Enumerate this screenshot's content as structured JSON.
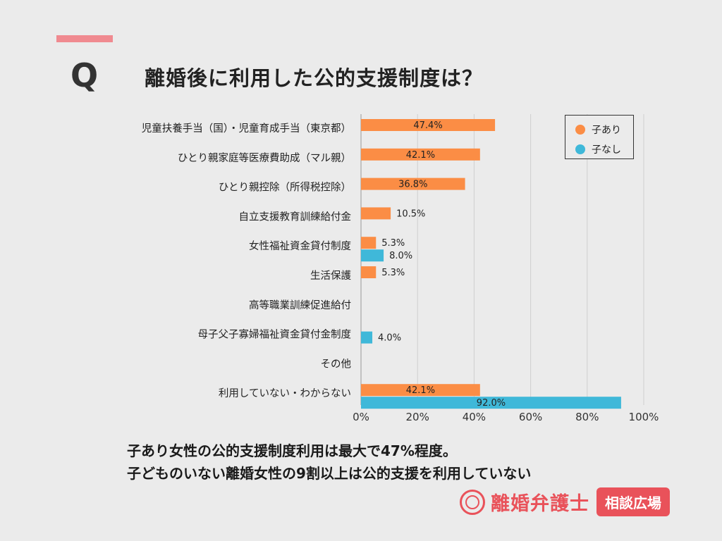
{
  "header": {
    "q_label": "Q",
    "question": "離婚後に利用した公的支援制度は？"
  },
  "legend": {
    "items": [
      {
        "label": "子あり",
        "color": "#fb8d45"
      },
      {
        "label": "子なし",
        "color": "#3fb8d9"
      }
    ]
  },
  "chart_data": {
    "type": "bar",
    "orientation": "horizontal",
    "categories": [
      "児童扶養手当（国）・児童育成手当（東京都）",
      "ひとり親家庭等医療費助成（マル親）",
      "ひとり親控除（所得税控除）",
      "自立支援教育訓練給付金",
      "女性福祉資金貸付制度",
      "生活保護",
      "高等職業訓練促進給付",
      "母子父子寡婦福祉資金貸付金制度",
      "その他",
      "利用していない・わからない"
    ],
    "series": [
      {
        "name": "子あり",
        "color": "#fb8d45",
        "values": [
          47.4,
          42.1,
          36.8,
          10.5,
          5.3,
          5.3,
          null,
          null,
          null,
          42.1
        ],
        "labels": [
          "47.4%",
          "42.1%",
          "36.8%",
          "10.5%",
          "5.3%",
          "5.3%",
          "",
          "",
          "",
          "42.1%"
        ]
      },
      {
        "name": "子なし",
        "color": "#3fb8d9",
        "values": [
          null,
          null,
          null,
          null,
          8.0,
          null,
          null,
          4.0,
          null,
          92.0
        ],
        "labels": [
          "",
          "",
          "",
          "",
          "8.0%",
          "",
          "",
          "4.0%",
          "",
          "92.0%"
        ]
      }
    ],
    "xlim": [
      0,
      100
    ],
    "x_ticks": [
      "0%",
      "20%",
      "40%",
      "60%",
      "80%",
      "100%"
    ],
    "grid": true,
    "legend_position": "top-right"
  },
  "summary": {
    "line1": "子あり女性の公的支援制度利用は最大で47%程度。",
    "line2": "子どものいない離婚女性の9割以上は公的支援を利用していない"
  },
  "logo": {
    "name": "離婚弁護士",
    "badge": "相談広場"
  }
}
